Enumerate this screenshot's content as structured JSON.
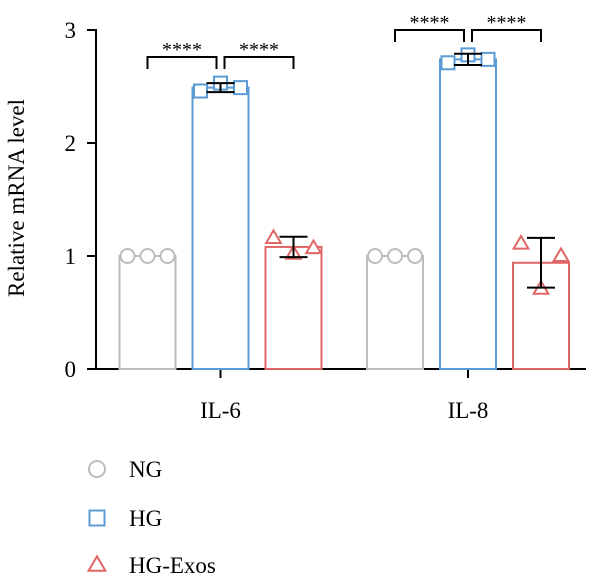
{
  "chart_data": {
    "type": "bar",
    "ylabel": "Relative mRNA level",
    "xlabel": "",
    "ylim": [
      0,
      3
    ],
    "yticks": [
      0,
      1,
      2,
      3
    ],
    "grid": false,
    "legend_position": "bottom-left",
    "categories": [
      "IL-6",
      "IL-8"
    ],
    "series": [
      {
        "name": "NG",
        "color": "#bdbdbd",
        "marker": "circle",
        "values": [
          1.0,
          1.0
        ],
        "errors": [
          0,
          0
        ],
        "points": [
          [
            1.0,
            1.0,
            1.0
          ],
          [
            1.0,
            1.0,
            1.0
          ]
        ]
      },
      {
        "name": "HG",
        "color": "#5b9bd5",
        "marker": "square",
        "values": [
          2.49,
          2.74
        ],
        "errors": [
          0.04,
          0.05
        ],
        "points": [
          [
            2.46,
            2.53,
            2.49
          ],
          [
            2.71,
            2.78,
            2.74
          ]
        ]
      },
      {
        "name": "HG-Exos",
        "color": "#e06666",
        "marker": "triangle",
        "values": [
          1.08,
          0.94
        ],
        "errors": [
          0.09,
          0.22
        ],
        "points": [
          [
            1.16,
            1.02,
            1.07
          ],
          [
            1.11,
            0.71,
            1.0
          ]
        ]
      }
    ],
    "annotations": [
      {
        "label": "****",
        "category": 0,
        "from_series": 0,
        "to_series": 1
      },
      {
        "label": "****",
        "category": 0,
        "from_series": 1,
        "to_series": 2
      },
      {
        "label": "****",
        "category": 1,
        "from_series": 0,
        "to_series": 1
      },
      {
        "label": "****",
        "category": 1,
        "from_series": 1,
        "to_series": 2
      }
    ]
  }
}
